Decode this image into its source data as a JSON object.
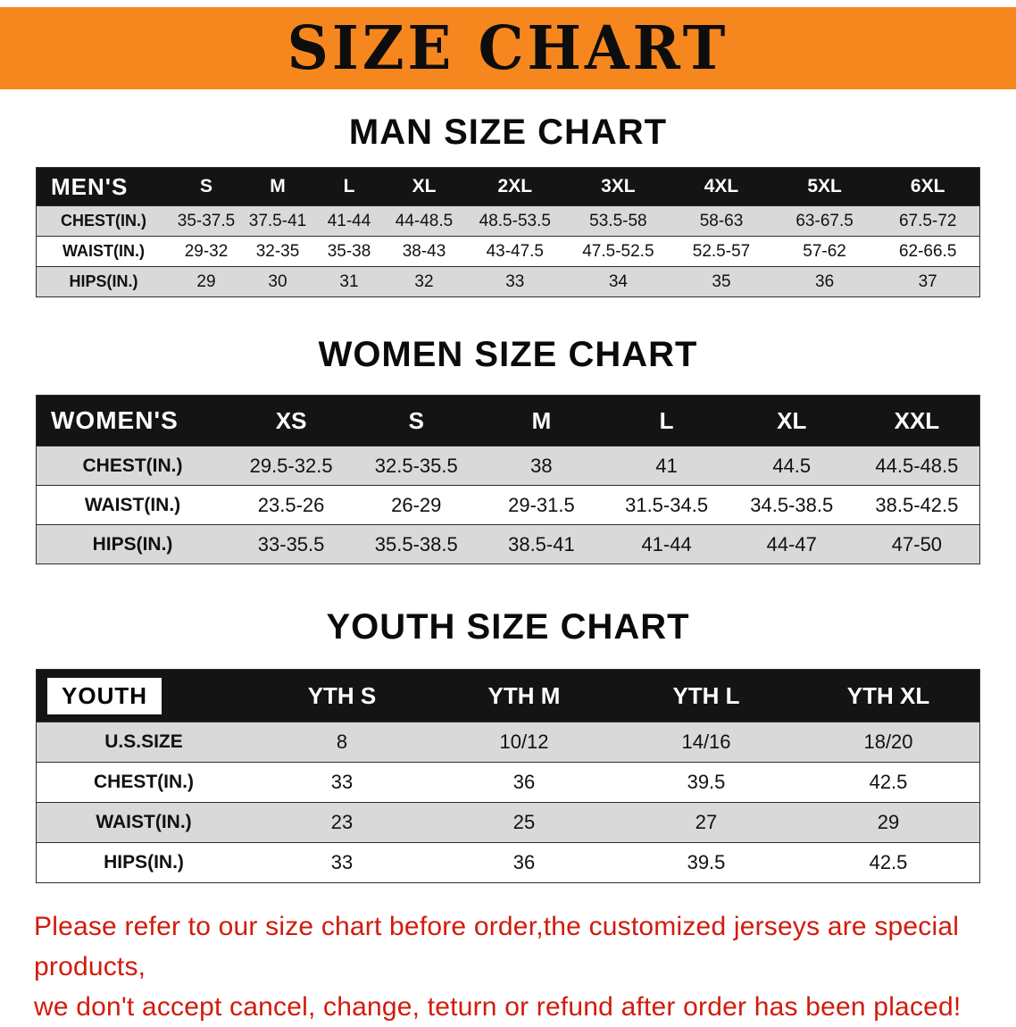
{
  "banner": {
    "title": "SIZE CHART",
    "bg_color": "#f6871f"
  },
  "men": {
    "heading": "MAN SIZE CHART",
    "header": [
      "MEN'S",
      "S",
      "M",
      "L",
      "XL",
      "2XL",
      "3XL",
      "4XL",
      "5XL",
      "6XL"
    ],
    "rows": [
      {
        "label": "CHEST(IN.)",
        "values": [
          "35-37.5",
          "37.5-41",
          "41-44",
          "44-48.5",
          "48.5-53.5",
          "53.5-58",
          "58-63",
          "63-67.5",
          "67.5-72"
        ]
      },
      {
        "label": "WAIST(IN.)",
        "values": [
          "29-32",
          "32-35",
          "35-38",
          "38-43",
          "43-47.5",
          "47.5-52.5",
          "52.5-57",
          "57-62",
          "62-66.5"
        ]
      },
      {
        "label": "HIPS(IN.)",
        "values": [
          "29",
          "30",
          "31",
          "32",
          "33",
          "34",
          "35",
          "36",
          "37"
        ]
      }
    ]
  },
  "women": {
    "heading": "WOMEN SIZE CHART",
    "header": [
      "WOMEN'S",
      "XS",
      "S",
      "M",
      "L",
      "XL",
      "XXL"
    ],
    "rows": [
      {
        "label": "CHEST(IN.)",
        "values": [
          "29.5-32.5",
          "32.5-35.5",
          "38",
          "41",
          "44.5",
          "44.5-48.5"
        ]
      },
      {
        "label": "WAIST(IN.)",
        "values": [
          "23.5-26",
          "26-29",
          "29-31.5",
          "31.5-34.5",
          "34.5-38.5",
          "38.5-42.5"
        ]
      },
      {
        "label": "HIPS(IN.)",
        "values": [
          "33-35.5",
          "35.5-38.5",
          "38.5-41",
          "41-44",
          "44-47",
          "47-50"
        ]
      }
    ]
  },
  "youth": {
    "heading": "YOUTH SIZE CHART",
    "header": [
      "YOUTH",
      "YTH S",
      "YTH M",
      "YTH L",
      "YTH XL"
    ],
    "rows": [
      {
        "label": "U.S.SIZE",
        "values": [
          "8",
          "10/12",
          "14/16",
          "18/20"
        ]
      },
      {
        "label": "CHEST(IN.)",
        "values": [
          "33",
          "36",
          "39.5",
          "42.5"
        ]
      },
      {
        "label": "WAIST(IN.)",
        "values": [
          "23",
          "25",
          "27",
          "29"
        ]
      },
      {
        "label": "HIPS(IN.)",
        "values": [
          "33",
          "36",
          "39.5",
          "42.5"
        ]
      }
    ]
  },
  "disclaimer": {
    "line1": "Please refer to our size chart before order,the customized jerseys are special products,",
    "line2": "we don't accept cancel, change, teturn or refund after order has been placed!",
    "text_color": "#d21b0c"
  }
}
